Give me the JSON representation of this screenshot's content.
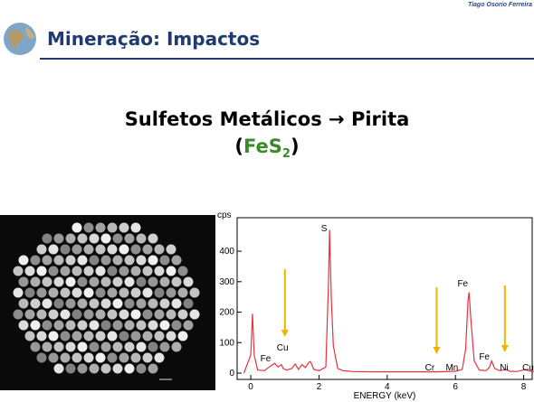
{
  "slide": {
    "author": "Tiago Osorio Ferreira",
    "title": "Mineração: Impactos",
    "heading": "Sulfetos Metálicos → Pirita",
    "formula": {
      "open": "(",
      "main": "FeS",
      "sub": "2",
      "close": ")"
    }
  },
  "chart_data": {
    "type": "line",
    "y_label": "cps",
    "x_label": "ENERGY (keV)",
    "x": [
      -0.2,
      0,
      0.05,
      0.1,
      0.2,
      0.4,
      0.6,
      0.7,
      0.8,
      0.9,
      0.95,
      1.05,
      1.2,
      1.3,
      1.4,
      1.5,
      1.6,
      1.7,
      1.75,
      1.85,
      2.0,
      2.2,
      2.28,
      2.31,
      2.36,
      2.42,
      2.47,
      2.55,
      2.7,
      3.0,
      3.5,
      4.0,
      4.5,
      5.0,
      5.5,
      6.0,
      6.2,
      6.3,
      6.37,
      6.4,
      6.45,
      6.55,
      6.7,
      6.9,
      7.0,
      7.06,
      7.15,
      7.3,
      7.48,
      7.6,
      7.8,
      8.05,
      8.2,
      8.3
    ],
    "series": [
      {
        "color": "#e8323c",
        "values": [
          0,
          60,
          195,
          60,
          10,
          8,
          25,
          32,
          20,
          28,
          15,
          10,
          15,
          30,
          12,
          28,
          18,
          35,
          38,
          12,
          8,
          20,
          300,
          470,
          250,
          90,
          60,
          15,
          8,
          5,
          4,
          4,
          4,
          4,
          4,
          6,
          12,
          80,
          240,
          265,
          180,
          40,
          10,
          8,
          20,
          40,
          15,
          8,
          12,
          6,
          5,
          12,
          6,
          5
        ]
      }
    ],
    "xlim": [
      -0.4,
      8.25
    ],
    "ylim": [
      0,
      510
    ],
    "xticks": [
      0,
      2,
      4,
      6,
      8
    ],
    "yticks": [
      0,
      100,
      200,
      300,
      400
    ],
    "peak_labels": [
      {
        "text": "S",
        "x": 2.31
      },
      {
        "text": "Fe",
        "x": 0.7
      },
      {
        "text": "Cu",
        "x": 0.93
      },
      {
        "text": "Fe",
        "x": 6.4
      },
      {
        "text": "Cr",
        "x": 5.41
      },
      {
        "text": "Mn",
        "x": 5.9
      },
      {
        "text": "Fe",
        "x": 7.06
      },
      {
        "text": "Ni",
        "x": 7.48
      },
      {
        "text": "Cu",
        "x": 8.05
      }
    ]
  }
}
